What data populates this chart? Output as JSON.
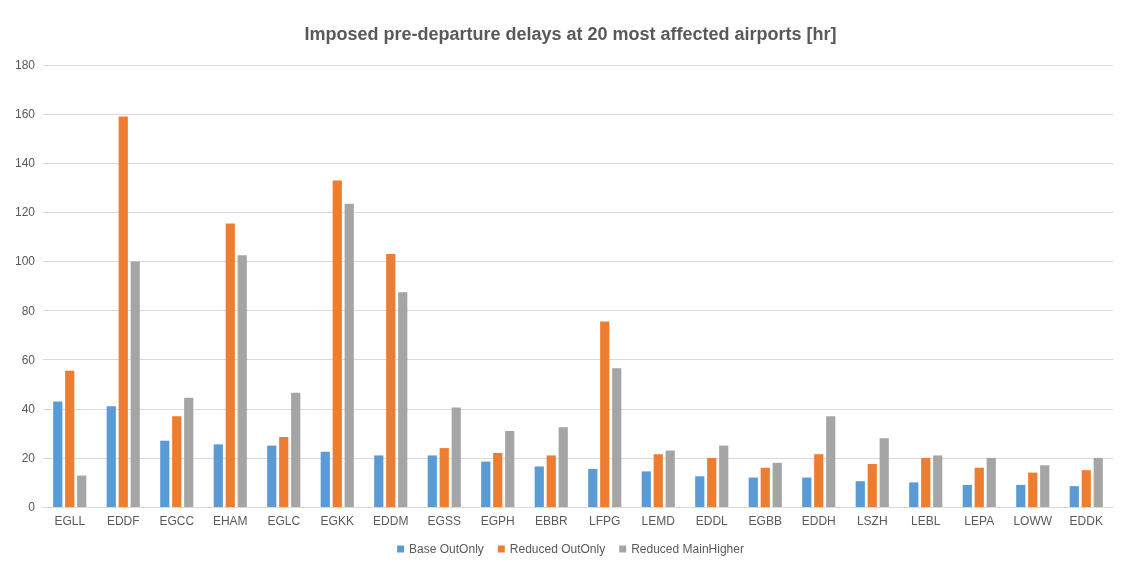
{
  "chart_data": {
    "type": "bar",
    "title": "Imposed pre-departure delays at 20 most affected airports [hr]",
    "categories": [
      "EGLL",
      "EDDF",
      "EGCC",
      "EHAM",
      "EGLC",
      "EGKK",
      "EDDM",
      "EGSS",
      "EGPH",
      "EBBR",
      "LFPG",
      "LEMD",
      "EDDL",
      "EGBB",
      "EDDH",
      "LSZH",
      "LEBL",
      "LEPA",
      "LOWW",
      "EDDK"
    ],
    "series": [
      {
        "name": "Base OutOnly",
        "color": "#5b9bd5",
        "values": [
          43,
          41,
          27,
          25.5,
          25,
          22.5,
          21,
          21,
          18.5,
          16.5,
          15.5,
          14.5,
          12.5,
          12,
          12,
          10.5,
          10,
          9,
          9,
          8.5
        ]
      },
      {
        "name": "Reduced OutOnly",
        "color": "#ed7d31",
        "values": [
          55.5,
          159,
          37,
          115.5,
          28.5,
          133,
          103,
          24,
          22,
          21,
          75.5,
          21.5,
          20,
          16,
          21.5,
          17.5,
          20,
          16,
          14,
          15
        ]
      },
      {
        "name": "Reduced MainHigher",
        "color": "#a5a5a5",
        "values": [
          12.8,
          100,
          44.5,
          102.5,
          46.5,
          123.5,
          87.5,
          40.5,
          31,
          32.5,
          56.5,
          23,
          25,
          18,
          37,
          28,
          21,
          20,
          17,
          20
        ]
      }
    ],
    "ylim": [
      0,
      180
    ],
    "yticks": [
      0,
      20,
      40,
      60,
      80,
      100,
      120,
      140,
      160,
      180
    ],
    "grid": "y",
    "legend": "bottom"
  }
}
